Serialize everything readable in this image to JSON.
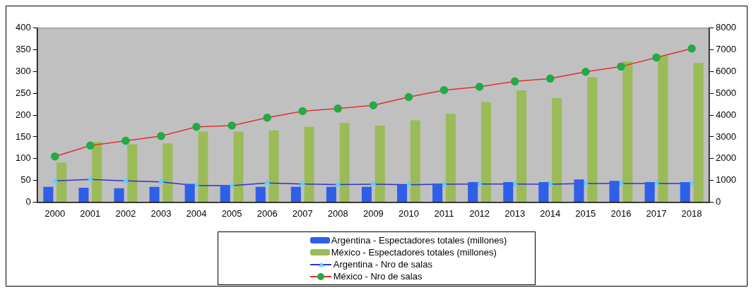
{
  "chart_data": {
    "type": "bar",
    "categories": [
      "2000",
      "2001",
      "2002",
      "2003",
      "2004",
      "2005",
      "2006",
      "2007",
      "2008",
      "2009",
      "2010",
      "2011",
      "2012",
      "2013",
      "2014",
      "2015",
      "2016",
      "2017",
      "2018"
    ],
    "series": [
      {
        "name": "Argentina - Espectadores totales (millones)",
        "color": "#2f5fe8",
        "values": [
          35,
          33,
          32,
          35,
          42,
          38,
          35,
          35,
          35,
          35,
          40,
          43,
          46,
          46,
          46,
          52,
          49,
          46,
          46
        ]
      },
      {
        "name": "México - Espectadores totales (millones)",
        "color": "#9bbb59",
        "values": [
          91,
          138,
          133,
          135,
          162,
          162,
          165,
          173,
          182,
          176,
          188,
          203,
          230,
          257,
          239,
          287,
          323,
          337,
          320
        ]
      },
      {
        "name": "Argentina - Nro de salas",
        "type": "line",
        "axis": "y2",
        "marker": "triangle",
        "color": "#3333cc",
        "values": [
          980,
          1040,
          980,
          930,
          760,
          760,
          880,
          830,
          810,
          820,
          800,
          820,
          830,
          830,
          820,
          860,
          860,
          860,
          860
        ]
      },
      {
        "name": "México - Nro de salas",
        "type": "line",
        "axis": "y2",
        "marker": "circle",
        "color": "#e03030",
        "values": [
          2100,
          2600,
          2820,
          3040,
          3460,
          3520,
          3880,
          4180,
          4300,
          4450,
          4830,
          5150,
          5300,
          5550,
          5680,
          5990,
          6230,
          6650,
          7060
        ]
      }
    ],
    "ylim": [
      0,
      400
    ],
    "yticks": [
      0,
      50,
      100,
      150,
      200,
      250,
      300,
      350,
      400
    ],
    "y2lim": [
      0,
      8000
    ],
    "y2ticks": [
      0,
      1000,
      2000,
      3000,
      4000,
      5000,
      6000,
      7000,
      8000
    ],
    "grid": false,
    "legend": "bottom"
  }
}
